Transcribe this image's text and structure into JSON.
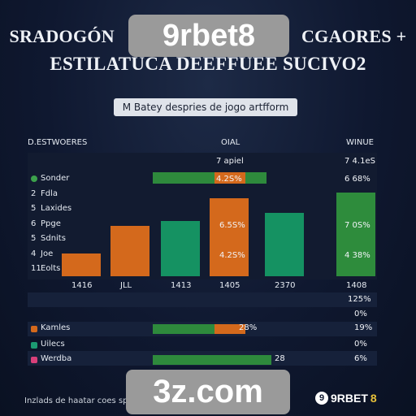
{
  "header": {
    "title_line1": "SRADOGÓN",
    "title_line1_right": "CGAORES +",
    "title_line2": "ESTILATUCA DEEFFUEE SUCIVO2",
    "brand_top": "9rbet8",
    "subtitle": "M Batey despries de jogo artfform"
  },
  "table_header": {
    "col1": "D.ESTWOERES",
    "col2": "OIAL",
    "col3": "WINUE"
  },
  "rows": [
    {
      "label": "Sonder",
      "color": "#3ca24c",
      "mid": "7 apiel",
      "right": "7 4.1eS"
    },
    {
      "label": "Fdla"
    },
    {
      "label": "Laxides"
    },
    {
      "label": "Ppge"
    },
    {
      "label": "Sdnits"
    },
    {
      "label": "Joe"
    },
    {
      "label": "Eolts"
    }
  ],
  "row_numbers": [
    "",
    "2",
    "5",
    "6",
    "5",
    "4",
    "11"
  ],
  "chart_data": {
    "type": "bar",
    "categories": [
      "1416",
      "JLL",
      "1413",
      "1405",
      "2370",
      "1408"
    ],
    "series": [
      {
        "values": [
          9,
          20,
          22,
          31,
          25,
          33
        ]
      }
    ],
    "bar_colors": [
      "#d4691c",
      "#d4691c",
      "#159262",
      "#d4691c",
      "#159262",
      "#2e8c3c"
    ],
    "ylim": [
      0,
      36
    ]
  },
  "bar_labels": [
    "4.2S%",
    "6.5S%",
    "4.2S%",
    "6 68%",
    "7 0S%",
    "4 38%"
  ],
  "extra_rows": [
    "125%",
    "0%"
  ],
  "legend_rows": [
    {
      "label": "Kamles",
      "color": "#d4691c",
      "value": "28%",
      "right": "19%",
      "green_frac": 0.52,
      "orange_frac": 0.26
    },
    {
      "label": "Uilecs",
      "color": "#1c9a72",
      "value": "",
      "right": "0%",
      "green_frac": 0,
      "orange_frac": 0
    },
    {
      "label": "Werdba",
      "color": "#d8407a",
      "value": "28",
      "right": "6%",
      "green_frac": 1.0,
      "orange_frac": 0
    }
  ],
  "footer": {
    "text": "Inzlads de haatar coes sp",
    "brand_bottom": "3z.com",
    "logo_icon": "9",
    "logo_text": "9RBET",
    "logo_8": "8"
  },
  "colors": {
    "orange": "#d4691c",
    "green": "#3ca24c",
    "teal": "#159262"
  }
}
